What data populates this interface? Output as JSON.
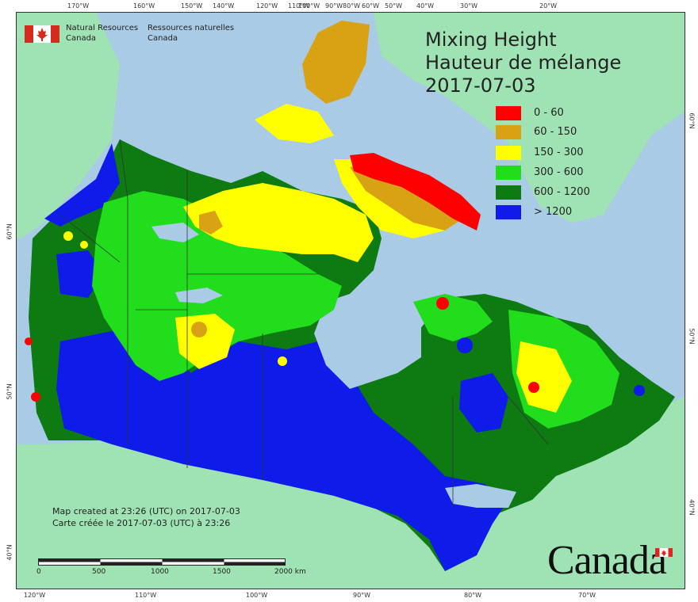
{
  "header": {
    "agency_en_line1": "Natural Resources",
    "agency_en_line2": "Canada",
    "agency_fr_line1": "Ressources naturelles",
    "agency_fr_line2": "Canada"
  },
  "title": {
    "en": "Mixing Height",
    "fr": "Hauteur de mélange",
    "date": "2017-07-03"
  },
  "legend": {
    "items": [
      {
        "label": "0 - 60",
        "color": "#ff0000"
      },
      {
        "label": "60 - 150",
        "color": "#d9a214"
      },
      {
        "label": "150 - 300",
        "color": "#ffff00"
      },
      {
        "label": "300 - 600",
        "color": "#22dd1c"
      },
      {
        "label": "600 - 1200",
        "color": "#0e7a12"
      },
      {
        "label": "> 1200",
        "color": "#0f1be8"
      }
    ]
  },
  "credits": {
    "line_en": "Map created at 23:26 (UTC) on 2017-07-03",
    "line_fr": "Carte créée le 2017-07-03 (UTC) à 23:26"
  },
  "scale": {
    "labels": [
      "0",
      "500",
      "1000",
      "1500",
      "2000  km"
    ]
  },
  "graticule": {
    "top": [
      "170°W",
      "160°W",
      "150°W",
      "140°W",
      "120°W",
      "110°W",
      "100°W",
      "90°W",
      "80°W",
      "60°W",
      "50°W",
      "40°W",
      "30°W",
      "20°W"
    ],
    "bottom": [
      "120°W",
      "110°W",
      "100°W",
      "90°W",
      "80°W",
      "70°W"
    ],
    "left": [
      "60°N",
      "50°N",
      "40°N"
    ],
    "right": [
      "60°N",
      "50°N",
      "40°N"
    ]
  },
  "wordmark": "Canada",
  "colors": {
    "ocean": "#a9cbe6",
    "foreign_land": "#9fe3b4",
    "border": "#333333"
  }
}
